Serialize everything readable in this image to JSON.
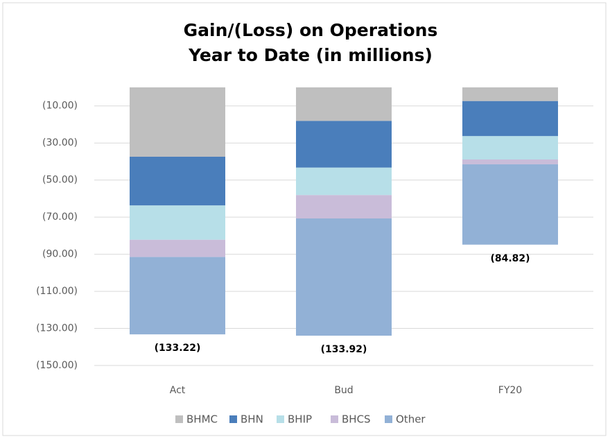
{
  "chart_data": {
    "type": "stacked_bar",
    "title": [
      "Gain/(Loss) on Operations",
      "Year to Date (in millions)"
    ],
    "categories": [
      "Act",
      "Bud",
      "FY20"
    ],
    "series": [
      {
        "name": "BHMC",
        "color": "#bfbfbf",
        "values": [
          -37.4,
          -18.1,
          -7.4
        ]
      },
      {
        "name": "BHN",
        "color": "#4a7ebb",
        "values": [
          -26.3,
          -25.2,
          -18.9
        ]
      },
      {
        "name": "BHIP",
        "color": "#b7dfe8",
        "values": [
          -18.5,
          -14.8,
          -12.6
        ]
      },
      {
        "name": "BHCS",
        "color": "#c9bcd9",
        "values": [
          -9.3,
          -12.6,
          -2.6
        ]
      },
      {
        "name": "Other",
        "color": "#92b1d6",
        "values": [
          -41.72,
          -63.22,
          -43.32
        ]
      }
    ],
    "totals": {
      "values": [
        -133.22,
        -133.92,
        -84.82
      ],
      "value_labels": [
        "(133.22)",
        "(133.92)",
        "(84.82)"
      ]
    },
    "ylim": [
      -150,
      0
    ],
    "yticks": [
      {
        "value": -10,
        "label": "(10.00)"
      },
      {
        "value": -30,
        "label": "(30.00)"
      },
      {
        "value": -50,
        "label": "(50.00)"
      },
      {
        "value": -70,
        "label": "(70.00)"
      },
      {
        "value": -90,
        "label": "(90.00)"
      },
      {
        "value": -110,
        "label": "(110.00)"
      },
      {
        "value": -130,
        "label": "(130.00)"
      },
      {
        "value": -150,
        "label": "(150.00)"
      }
    ],
    "grid": true,
    "legend": "bottom"
  }
}
